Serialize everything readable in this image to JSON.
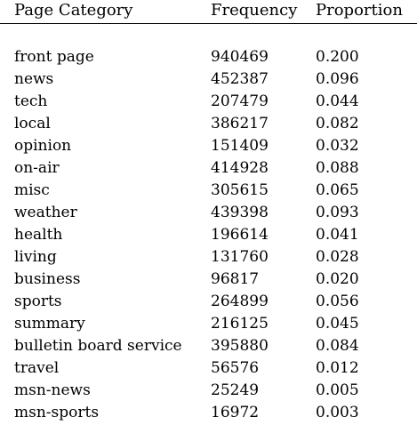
{
  "table": {
    "headers": {
      "category": "Page Category",
      "frequency": "Frequency",
      "proportion": "Proportion"
    },
    "rows": [
      {
        "category": "front page",
        "frequency": "940469",
        "proportion": "0.200"
      },
      {
        "category": "news",
        "frequency": "452387",
        "proportion": "0.096"
      },
      {
        "category": "tech",
        "frequency": "207479",
        "proportion": "0.044"
      },
      {
        "category": "local",
        "frequency": "386217",
        "proportion": "0.082"
      },
      {
        "category": "opinion",
        "frequency": "151409",
        "proportion": "0.032"
      },
      {
        "category": "on-air",
        "frequency": "414928",
        "proportion": "0.088"
      },
      {
        "category": "misc",
        "frequency": "305615",
        "proportion": "0.065"
      },
      {
        "category": "weather",
        "frequency": "439398",
        "proportion": "0.093"
      },
      {
        "category": "health",
        "frequency": "196614",
        "proportion": "0.041"
      },
      {
        "category": "living",
        "frequency": "131760",
        "proportion": "0.028"
      },
      {
        "category": "business",
        "frequency": "96817",
        "proportion": "0.020"
      },
      {
        "category": "sports",
        "frequency": "264899",
        "proportion": "0.056"
      },
      {
        "category": "summary",
        "frequency": "216125",
        "proportion": "0.045"
      },
      {
        "category": "bulletin board service",
        "frequency": "395880",
        "proportion": "0.084"
      },
      {
        "category": "travel",
        "frequency": "56576",
        "proportion": "0.012"
      },
      {
        "category": "msn-news",
        "frequency": "25249",
        "proportion": "0.005"
      },
      {
        "category": "msn-sports",
        "frequency": "16972",
        "proportion": "0.003"
      }
    ]
  }
}
